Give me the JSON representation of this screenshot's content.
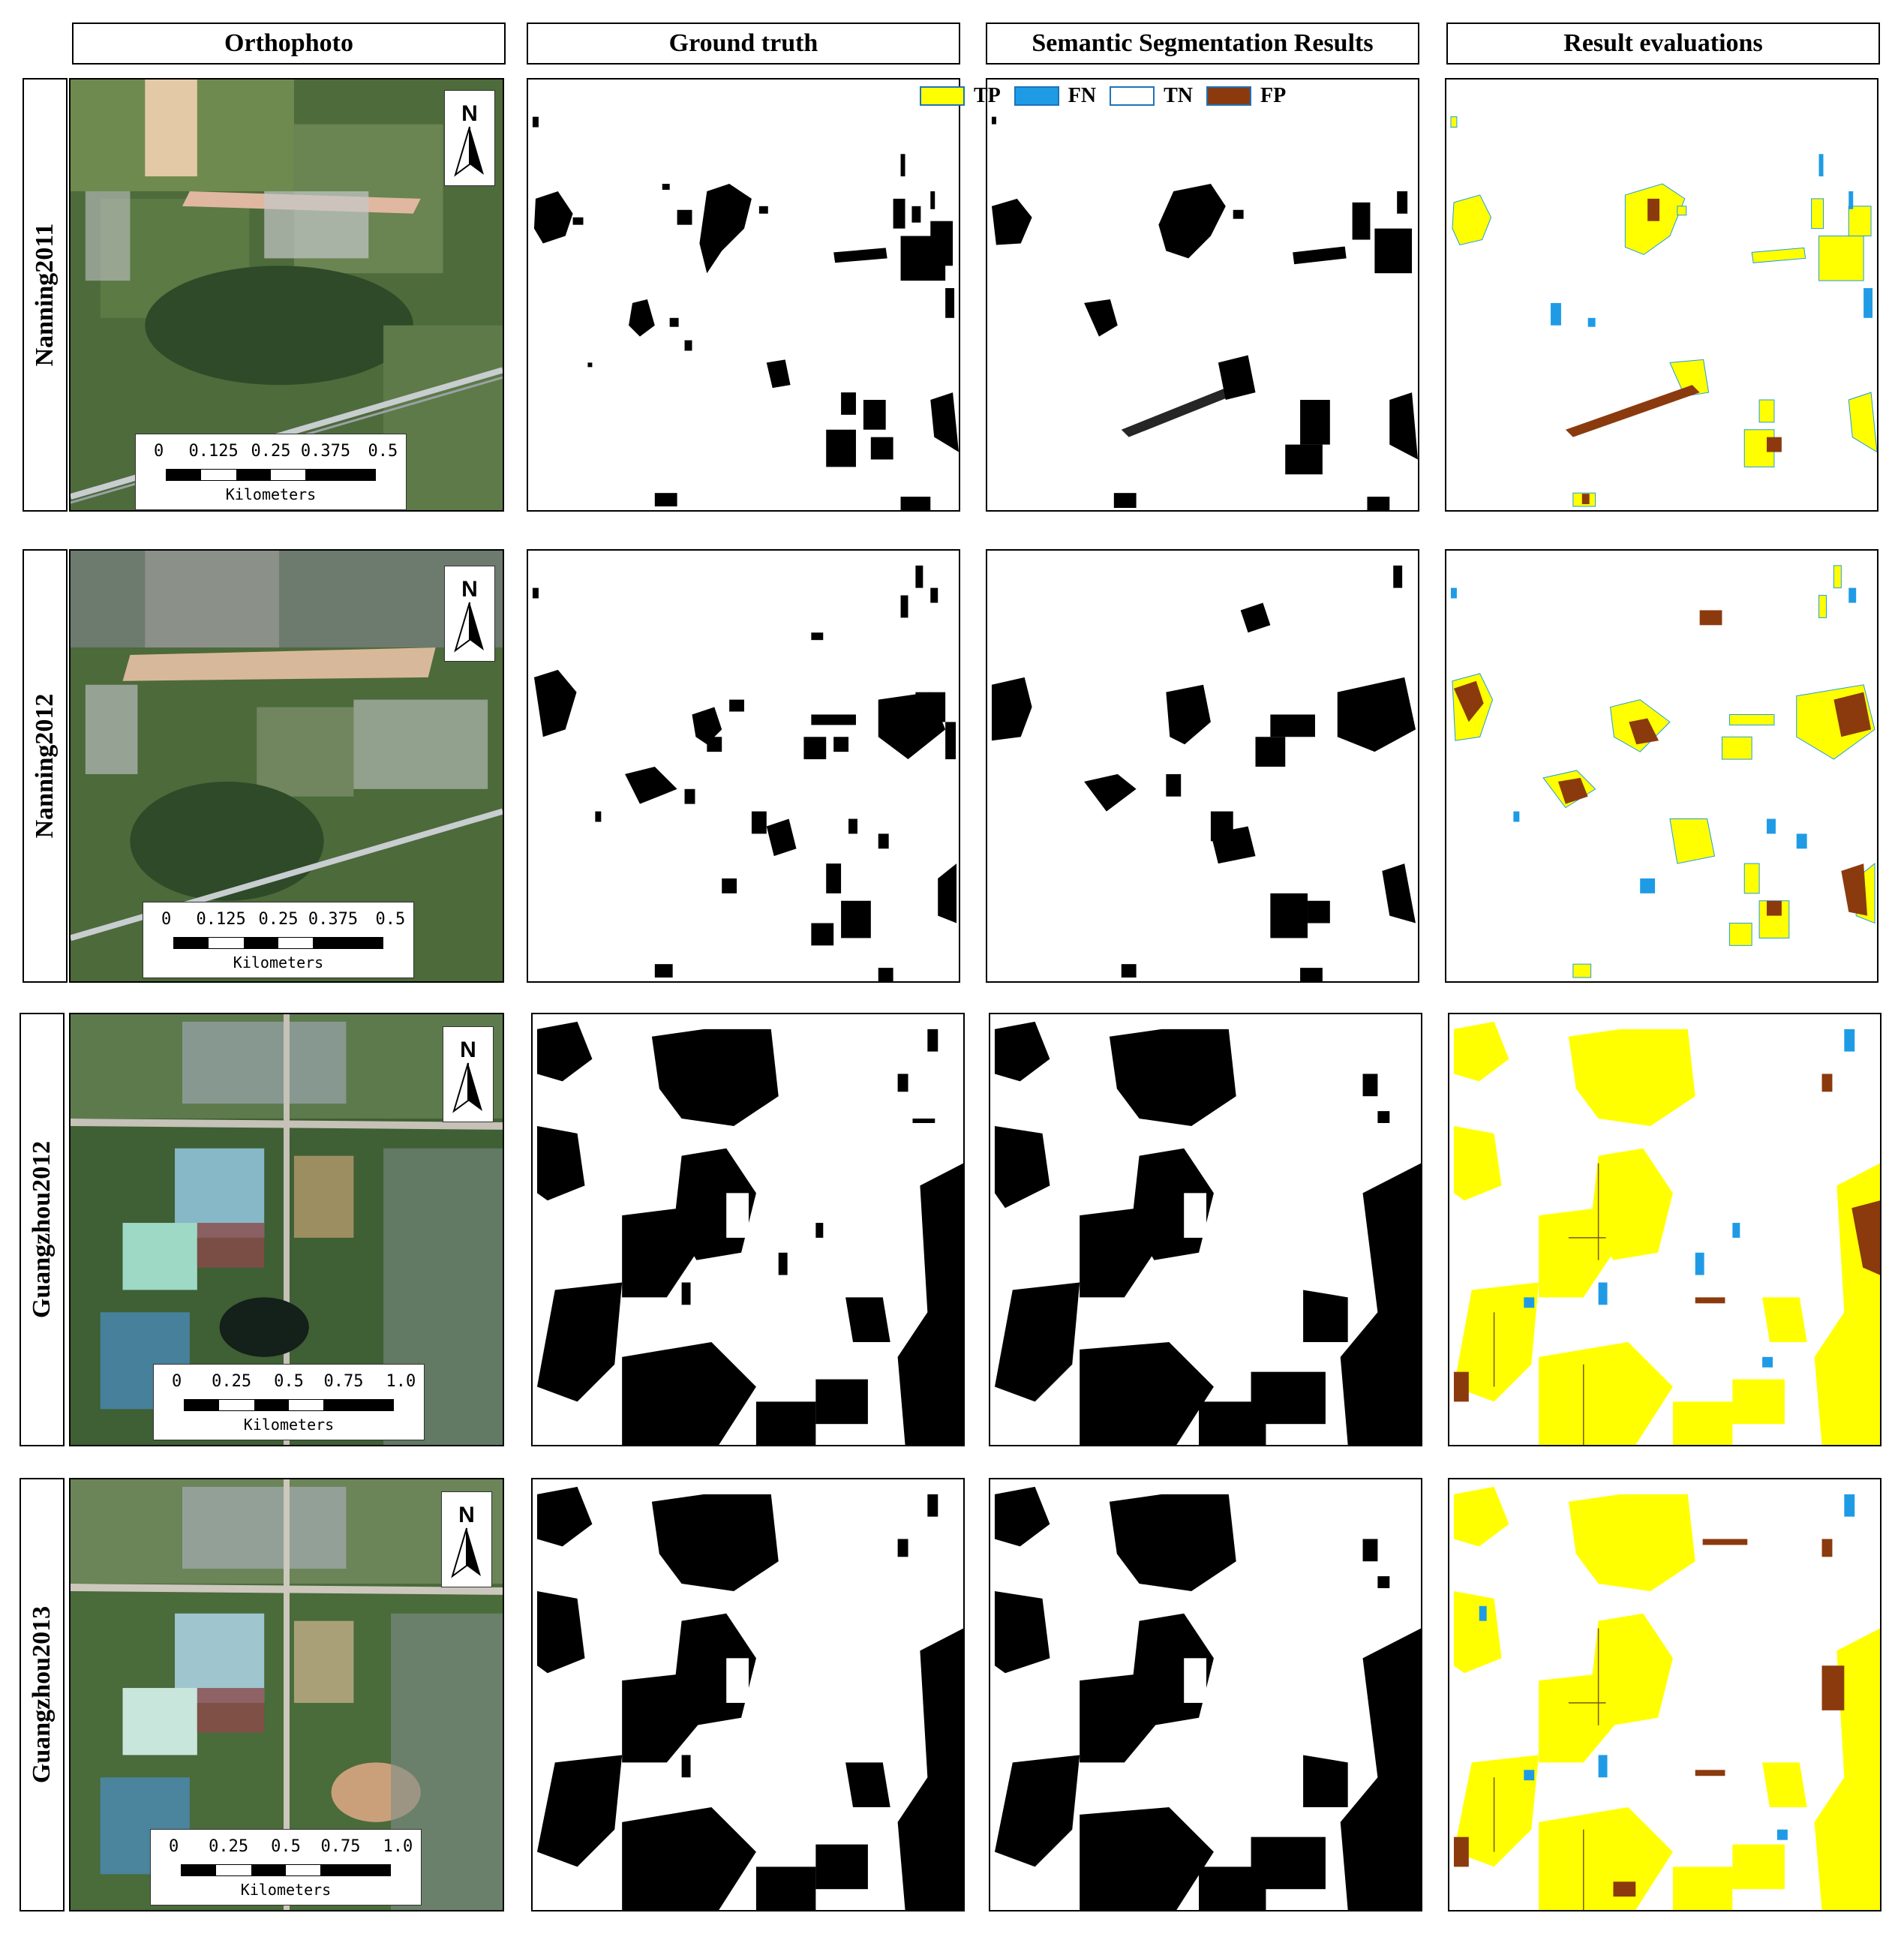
{
  "headers": {
    "ortho": "Orthophoto",
    "gt": "Ground truth",
    "seg": "Semantic Segmentation Results",
    "eval": "Result evaluations"
  },
  "rows": [
    {
      "label": "Nanning2011"
    },
    {
      "label": "Nanning2012"
    },
    {
      "label": "Guangzhou2012"
    },
    {
      "label": "Guangzhou2013"
    }
  ],
  "scalebar_nanning": {
    "ticks": [
      "0",
      "0.125",
      "0.25",
      "0.375",
      "0.5"
    ],
    "unit": "Kilometers"
  },
  "scalebar_guangzhou": {
    "ticks": [
      "0",
      "0.25",
      "0.5",
      "0.75",
      "1.0"
    ],
    "unit": "Kilometers"
  },
  "north_label": "N",
  "legend": [
    {
      "label": "TP",
      "color": "#ffff00"
    },
    {
      "label": "FN",
      "color": "#1f9be6"
    },
    {
      "label": "TN",
      "color": "#ffffff"
    },
    {
      "label": "FP",
      "color": "#8b3a0e"
    }
  ]
}
